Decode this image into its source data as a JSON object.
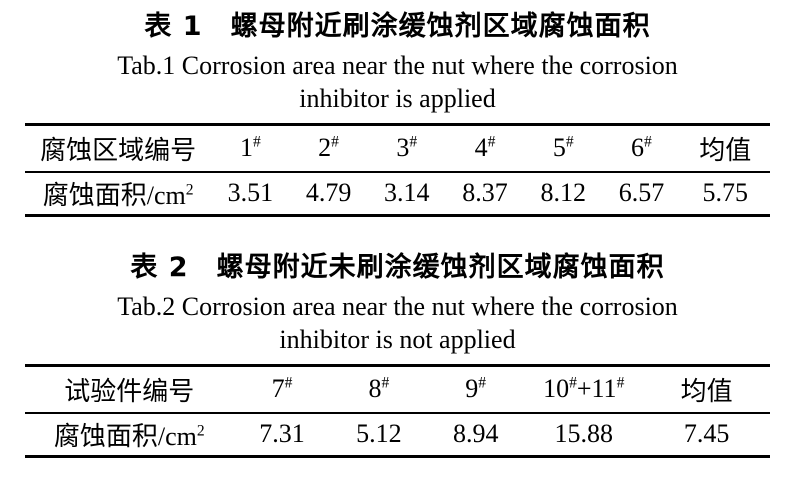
{
  "page": {
    "background_color": "#ffffff",
    "text_color": "#000000"
  },
  "tables": [
    {
      "title_zh": "表 1　螺母附近刷涂缓蚀剂区域腐蚀面积",
      "title_en_line1": "Tab.1 Corrosion area near the nut where the corrosion",
      "title_en_line2": "inhibitor is applied",
      "header": [
        "腐蚀区域编号",
        "1#",
        "2#",
        "3#",
        "4#",
        "5#",
        "6#",
        "均值"
      ],
      "row": [
        "腐蚀面积/cm²",
        "3.51",
        "4.79",
        "3.14",
        "8.37",
        "8.12",
        "6.57",
        "5.75"
      ]
    },
    {
      "title_zh": "表 2　螺母附近未刷涂缓蚀剂区域腐蚀面积",
      "title_en_line1": "Tab.2 Corrosion area near the nut where the corrosion",
      "title_en_line2": "inhibitor is not applied",
      "header": [
        "试验件编号",
        "7#",
        "8#",
        "9#",
        "10#+11#",
        "均值"
      ],
      "row": [
        "腐蚀面积/cm²",
        "7.31",
        "5.12",
        "8.94",
        "15.88",
        "7.45"
      ]
    }
  ]
}
